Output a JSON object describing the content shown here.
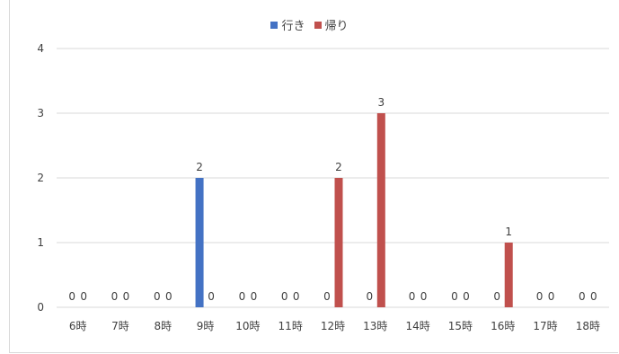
{
  "chart_data": {
    "type": "bar",
    "categories": [
      "6時",
      "7時",
      "8時",
      "9時",
      "10時",
      "11時",
      "12時",
      "13時",
      "14時",
      "15時",
      "16時",
      "17時",
      "18時"
    ],
    "series": [
      {
        "name": "行き",
        "color": "#4472c4",
        "values": [
          0,
          0,
          0,
          2,
          0,
          0,
          0,
          0,
          0,
          0,
          0,
          0,
          0
        ]
      },
      {
        "name": "帰り",
        "color": "#c0504d",
        "values": [
          0,
          0,
          0,
          0,
          0,
          0,
          2,
          3,
          0,
          0,
          1,
          0,
          0
        ]
      }
    ],
    "ylim": [
      0,
      4
    ],
    "yticks": [
      0,
      1,
      2,
      3,
      4
    ],
    "grid": true,
    "legend": "top",
    "title": "",
    "xlabel": "",
    "ylabel": ""
  }
}
